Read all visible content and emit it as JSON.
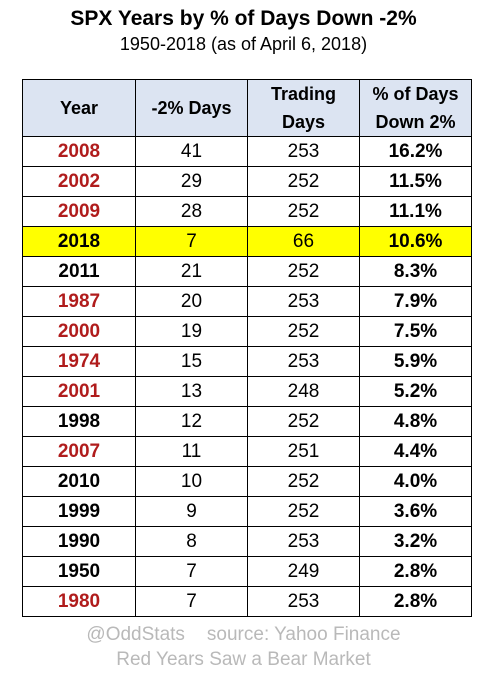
{
  "chart_data": {
    "type": "table",
    "title": "SPX Years by % of Days Down -2%",
    "subtitle": "1950-2018 (as of April 6, 2018)",
    "columns": [
      {
        "line1": "Year",
        "line2": ""
      },
      {
        "line1": "-2% Days",
        "line2": ""
      },
      {
        "line1": "Trading",
        "line2": "Days"
      },
      {
        "line1": "% of Days",
        "line2": "Down 2%"
      }
    ],
    "rows": [
      {
        "year": "2008",
        "down_days": "41",
        "trading_days": "253",
        "pct": "16.2%",
        "bear": true,
        "highlight": false
      },
      {
        "year": "2002",
        "down_days": "29",
        "trading_days": "252",
        "pct": "11.5%",
        "bear": true,
        "highlight": false
      },
      {
        "year": "2009",
        "down_days": "28",
        "trading_days": "252",
        "pct": "11.1%",
        "bear": true,
        "highlight": false
      },
      {
        "year": "2018",
        "down_days": "7",
        "trading_days": "66",
        "pct": "10.6%",
        "bear": false,
        "highlight": true
      },
      {
        "year": "2011",
        "down_days": "21",
        "trading_days": "252",
        "pct": "8.3%",
        "bear": false,
        "highlight": false
      },
      {
        "year": "1987",
        "down_days": "20",
        "trading_days": "253",
        "pct": "7.9%",
        "bear": true,
        "highlight": false
      },
      {
        "year": "2000",
        "down_days": "19",
        "trading_days": "252",
        "pct": "7.5%",
        "bear": true,
        "highlight": false
      },
      {
        "year": "1974",
        "down_days": "15",
        "trading_days": "253",
        "pct": "5.9%",
        "bear": true,
        "highlight": false
      },
      {
        "year": "2001",
        "down_days": "13",
        "trading_days": "248",
        "pct": "5.2%",
        "bear": true,
        "highlight": false
      },
      {
        "year": "1998",
        "down_days": "12",
        "trading_days": "252",
        "pct": "4.8%",
        "bear": false,
        "highlight": false
      },
      {
        "year": "2007",
        "down_days": "11",
        "trading_days": "251",
        "pct": "4.4%",
        "bear": true,
        "highlight": false
      },
      {
        "year": "2010",
        "down_days": "10",
        "trading_days": "252",
        "pct": "4.0%",
        "bear": false,
        "highlight": false
      },
      {
        "year": "1999",
        "down_days": "9",
        "trading_days": "252",
        "pct": "3.6%",
        "bear": false,
        "highlight": false
      },
      {
        "year": "1990",
        "down_days": "8",
        "trading_days": "253",
        "pct": "3.2%",
        "bear": false,
        "highlight": false
      },
      {
        "year": "1950",
        "down_days": "7",
        "trading_days": "249",
        "pct": "2.8%",
        "bear": false,
        "highlight": false
      },
      {
        "year": "1980",
        "down_days": "7",
        "trading_days": "253",
        "pct": "2.8%",
        "bear": true,
        "highlight": false
      }
    ],
    "bear_year_color": "#b01c1c",
    "normal_year_color": "#000000",
    "highlight_color": "#ffff00",
    "header_bg": "#dce4f2"
  },
  "footer": {
    "handle": "@OddStats",
    "source": "source: Yahoo Finance",
    "note": "Red Years Saw a Bear Market"
  }
}
